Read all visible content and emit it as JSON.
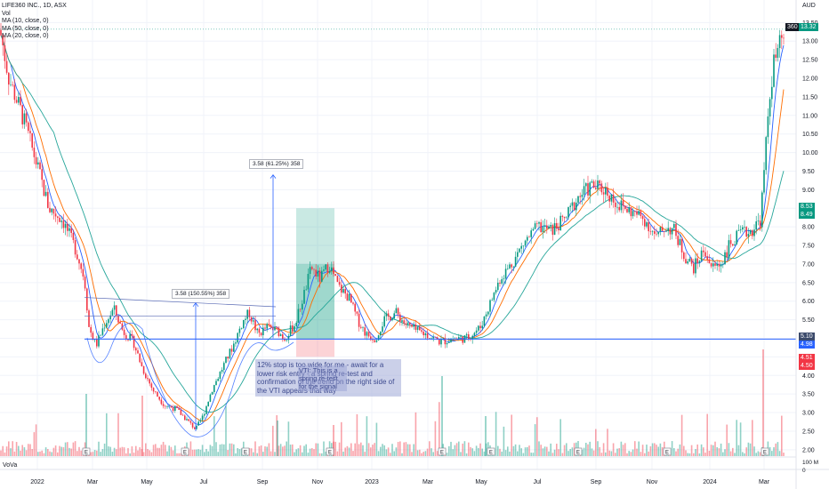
{
  "legend": {
    "symbol": "LIFE360 INC., 1D, ASX",
    "vol": "Vol",
    "ma10": "MA (10, close, 0)",
    "ma50": "MA (50, close, 0)",
    "ma20": "MA (20, close, 0)"
  },
  "currency": "AUD",
  "volume_pane_label": "VoVa",
  "annotations": {
    "measure_top": "3.58 (61.25%) 358",
    "measure_left": "3.58 (150.55%) 358",
    "note": "12% stop is too wide for me - await for a lower risk entry - a spring re-test and confirmation of the trend on the right side of the VTI appears that way",
    "note_overlay": "VTI: This is a spring re-test for the signal"
  },
  "price_tags": {
    "last_label": "360",
    "last": "13.32",
    "ma_a": "8.53",
    "ma_b": "8.49",
    "sup_a": "5.10",
    "sup_b": "4.98",
    "red_a": "4.51",
    "red_b": "4.50"
  },
  "chart_data": {
    "type": "candlestick",
    "title": "LIFE360 INC., 1D, ASX",
    "ylim": [
      1.9,
      13.7
    ],
    "y_ticks": [
      "13.50",
      "13.00",
      "12.50",
      "12.00",
      "11.50",
      "11.00",
      "10.50",
      "10.00",
      "9.50",
      "9.00",
      "8.50",
      "8.00",
      "7.50",
      "7.00",
      "6.50",
      "6.00",
      "5.50",
      "5.00",
      "4.50",
      "4.00",
      "3.50",
      "3.00",
      "2.50",
      "2.00"
    ],
    "x_ticks": [
      "2022",
      "Mar",
      "May",
      "Jul",
      "Sep",
      "Nov",
      "2023",
      "Mar",
      "May",
      "Jul",
      "Sep",
      "Nov",
      "2024",
      "Mar"
    ],
    "volume_ticks": [
      "100 M",
      "0"
    ],
    "price_path_knots": [
      [
        0,
        13.3
      ],
      [
        10,
        12.0
      ],
      [
        25,
        11.0
      ],
      [
        40,
        9.8
      ],
      [
        55,
        8.5
      ],
      [
        70,
        8.2
      ],
      [
        85,
        7.4
      ],
      [
        95,
        6.6
      ],
      [
        100,
        5.3
      ],
      [
        108,
        4.8
      ],
      [
        118,
        5.4
      ],
      [
        128,
        5.8
      ],
      [
        138,
        5.2
      ],
      [
        150,
        4.9
      ],
      [
        160,
        4.2
      ],
      [
        172,
        3.6
      ],
      [
        185,
        3.2
      ],
      [
        198,
        3.1
      ],
      [
        210,
        2.8
      ],
      [
        220,
        2.55
      ],
      [
        228,
        2.9
      ],
      [
        238,
        3.6
      ],
      [
        250,
        4.2
      ],
      [
        262,
        4.8
      ],
      [
        272,
        5.4
      ],
      [
        280,
        5.7
      ],
      [
        290,
        5.1
      ],
      [
        300,
        5.3
      ],
      [
        312,
        5.2
      ],
      [
        320,
        5.0
      ],
      [
        332,
        5.4
      ],
      [
        342,
        6.2
      ],
      [
        350,
        6.9
      ],
      [
        360,
        6.6
      ],
      [
        370,
        7.0
      ],
      [
        380,
        6.4
      ],
      [
        392,
        6.1
      ],
      [
        402,
        5.5
      ],
      [
        412,
        5.1
      ],
      [
        422,
        5.0
      ],
      [
        432,
        5.5
      ],
      [
        445,
        5.7
      ],
      [
        455,
        5.4
      ],
      [
        468,
        5.2
      ],
      [
        480,
        5.1
      ],
      [
        495,
        4.9
      ],
      [
        510,
        5.0
      ],
      [
        525,
        5.0
      ],
      [
        540,
        5.3
      ],
      [
        552,
        6.0
      ],
      [
        562,
        6.6
      ],
      [
        575,
        7.0
      ],
      [
        590,
        7.6
      ],
      [
        605,
        8.0
      ],
      [
        620,
        7.9
      ],
      [
        635,
        8.2
      ],
      [
        650,
        8.8
      ],
      [
        665,
        9.1
      ],
      [
        680,
        9.0
      ],
      [
        695,
        8.6
      ],
      [
        710,
        8.4
      ],
      [
        725,
        8.2
      ],
      [
        738,
        7.7
      ],
      [
        748,
        8.0
      ],
      [
        758,
        7.9
      ],
      [
        770,
        7.2
      ],
      [
        780,
        6.9
      ],
      [
        792,
        7.4
      ],
      [
        800,
        6.9
      ],
      [
        810,
        7.0
      ],
      [
        820,
        7.5
      ],
      [
        832,
        7.8
      ],
      [
        845,
        7.9
      ],
      [
        855,
        8.2
      ],
      [
        860,
        9.8
      ],
      [
        865,
        11.5
      ],
      [
        870,
        12.4
      ],
      [
        876,
        12.8
      ],
      [
        882,
        13.3
      ]
    ],
    "moving_averages": [
      "MA 10",
      "MA 20",
      "MA 50"
    ],
    "horizontal_support": 4.98,
    "trade_box": {
      "entry": 4.98,
      "target": 8.5,
      "stop": 4.5,
      "x_start": 333,
      "x_end": 376
    }
  }
}
